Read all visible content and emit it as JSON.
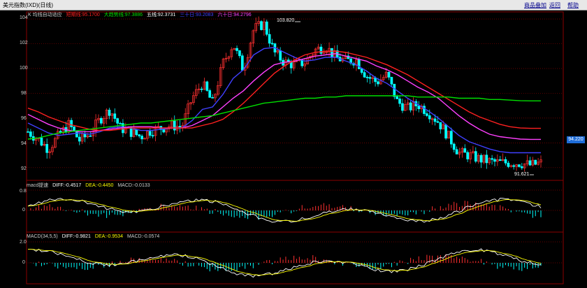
{
  "window": {
    "title": "美元指数(IXD)(日线)",
    "buttons": [
      "商品叠加",
      "返回",
      "帮助"
    ]
  },
  "main_panel": {
    "indicator_name": "K  均线自动适应",
    "ma_labels": [
      {
        "text": "短期线:95.1700",
        "color": "#ff2020"
      },
      {
        "text": "大趋势线:97.3886",
        "color": "#00e000"
      },
      {
        "text": "五线:92.3731",
        "color": "#ffffff"
      },
      {
        "text": "三十日:93.2083",
        "color": "#4040ff"
      },
      {
        "text": "六十日:94.2796",
        "color": "#ff40ff"
      }
    ],
    "y_ticks": [
      "104",
      "102",
      "100",
      "98",
      "96",
      "94",
      "92"
    ],
    "high_label": "103.820",
    "low_label": "91.621",
    "last_price": "94.220"
  },
  "macd1": {
    "label": "macd提速  DIFF:-0.4517  DEA:-0.4450  MACD:-0.0133",
    "parts": [
      {
        "text": "macd提速",
        "color": "#cccccc"
      },
      {
        "text": "DIFF:-0.4517",
        "color": "#ffffff"
      },
      {
        "text": "DEA:-0.4450",
        "color": "#ffff00"
      },
      {
        "text": "MACD:-0.0133",
        "color": "#cccccc"
      }
    ],
    "y_ticks": [
      "0.8",
      "0"
    ]
  },
  "macd2": {
    "label": "MACD(34,5,5)  DIFF:-0.9821  DEA:-0.9534  MACD:-0.0574",
    "parts": [
      {
        "text": "MACD(34,5,5)",
        "color": "#cccccc"
      },
      {
        "text": "DIFF:-0.9821",
        "color": "#ffffff"
      },
      {
        "text": "DEA:-0.9534",
        "color": "#ffff00"
      },
      {
        "text": "MACD:-0.0574",
        "color": "#cccccc"
      }
    ],
    "y_ticks": [
      "2.0",
      "0"
    ]
  },
  "colors": {
    "up_candle": "#ff3030",
    "down_candle": "#00ffff",
    "short_ma": "#ff2020",
    "trend_ma": "#00e000",
    "ma5": "#ffffff",
    "ma30": "#4040ff",
    "ma60": "#ff40ff",
    "grid": "#8b0000",
    "price_box": "#1e6cd8"
  },
  "chart_data": {
    "type": "line",
    "title": "美元指数(IXD)(日线)",
    "ylim": [
      91.2,
      104.4
    ],
    "x": [
      0,
      4,
      8,
      12,
      16,
      20,
      24,
      28,
      32,
      36,
      40,
      44,
      48,
      52,
      56,
      60,
      64,
      68,
      72,
      76,
      80,
      84,
      88,
      92,
      96,
      100,
      104,
      108,
      112,
      116,
      120,
      124,
      128,
      132,
      136,
      140,
      144,
      148,
      152,
      156,
      160,
      164,
      168,
      172,
      176,
      180,
      184,
      188,
      192,
      196,
      200
    ],
    "series": [
      {
        "name": "五线",
        "values": [
          94.9,
          94.3,
          93.5,
          94.6,
          95.5,
          94.2,
          94.7,
          95.9,
          96.7,
          95.2,
          94.9,
          94.5,
          95.0,
          95.2,
          95.4,
          95.3,
          97.6,
          98.8,
          97.2,
          100.4,
          102.0,
          99.9,
          103.2,
          103.6,
          101.3,
          100.5,
          100.3,
          100.5,
          101.5,
          101.8,
          100.9,
          100.6,
          100.7,
          99.4,
          98.9,
          99.5,
          97.3,
          96.8,
          97.1,
          96.5,
          95.7,
          94.5,
          93.2,
          93.0,
          92.7,
          92.5,
          92.4,
          92.4,
          92.37,
          92.2,
          92.37
        ]
      },
      {
        "name": "三十日",
        "values": [
          95.6,
          95.2,
          94.8,
          94.6,
          94.7,
          94.8,
          94.7,
          94.9,
          95.2,
          95.3,
          95.2,
          95.0,
          95.0,
          95.1,
          95.2,
          95.2,
          95.8,
          96.7,
          96.9,
          97.9,
          99.2,
          99.9,
          101.1,
          101.6,
          101.7,
          101.3,
          100.9,
          100.6,
          100.7,
          100.9,
          100.9,
          100.6,
          100.3,
          99.8,
          99.2,
          98.8,
          98.2,
          97.6,
          97.1,
          96.6,
          96.0,
          95.3,
          94.6,
          94.1,
          93.8,
          93.5,
          93.3,
          93.2,
          93.2,
          93.2,
          93.2
        ]
      },
      {
        "name": "六十日",
        "values": [
          96.3,
          95.9,
          95.5,
          95.2,
          95.0,
          94.9,
          94.9,
          95.0,
          95.1,
          95.2,
          95.3,
          95.3,
          95.3,
          95.2,
          95.2,
          95.2,
          95.4,
          95.8,
          96.2,
          96.9,
          97.6,
          98.2,
          99.0,
          99.7,
          100.3,
          100.5,
          100.6,
          100.8,
          101.0,
          101.1,
          101.2,
          101.0,
          100.8,
          100.6,
          100.2,
          99.9,
          99.5,
          99.0,
          98.5,
          98.1,
          97.6,
          96.9,
          96.2,
          95.6,
          95.1,
          94.7,
          94.5,
          94.4,
          94.3,
          94.28,
          94.28
        ]
      },
      {
        "name": "短期线",
        "values": [
          96.8,
          96.5,
          96.1,
          95.8,
          95.5,
          95.3,
          95.1,
          95.0,
          95.0,
          95.1,
          95.2,
          95.2,
          95.2,
          95.2,
          95.2,
          95.2,
          95.2,
          95.4,
          95.6,
          95.9,
          96.5,
          97.2,
          98.0,
          98.8,
          99.6,
          100.2,
          100.7,
          101.1,
          101.3,
          101.4,
          101.4,
          101.3,
          101.1,
          100.9,
          100.6,
          100.3,
          99.9,
          99.5,
          99.0,
          98.5,
          98.0,
          97.5,
          97.0,
          96.5,
          96.1,
          95.8,
          95.5,
          95.3,
          95.2,
          95.17,
          95.17
        ]
      },
      {
        "name": "大趋势线",
        "values": [
          94.3,
          94.4,
          94.6,
          94.8,
          94.9,
          95.0,
          95.1,
          95.2,
          95.3,
          95.4,
          95.5,
          95.6,
          95.6,
          95.7,
          95.8,
          95.9,
          96.0,
          96.1,
          96.2,
          96.4,
          96.6,
          96.8,
          97.0,
          97.2,
          97.3,
          97.4,
          97.5,
          97.6,
          97.6,
          97.7,
          97.7,
          97.8,
          97.8,
          97.8,
          97.8,
          97.8,
          97.8,
          97.8,
          97.7,
          97.7,
          97.7,
          97.7,
          97.6,
          97.6,
          97.6,
          97.5,
          97.5,
          97.45,
          97.4,
          97.39,
          97.39
        ]
      }
    ]
  }
}
